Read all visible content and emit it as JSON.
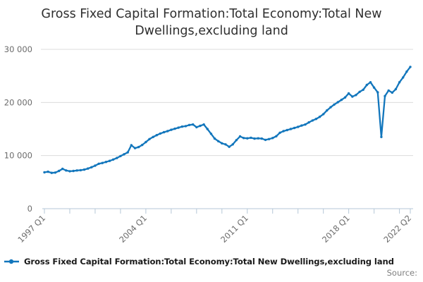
{
  "title": {
    "line1": "Gross Fixed Capital Formation:Total Economy:Total New",
    "line2": "Dwellings,excluding land"
  },
  "legend": {
    "label": "Gross Fixed Capital Formation:Total Economy:Total New Dwellings,excluding land",
    "marker_color": "#1276bc"
  },
  "footer": {
    "source_label": "Source:"
  },
  "chart_data": {
    "type": "line",
    "title": "Gross Fixed Capital Formation:Total Economy:Total New Dwellings,excluding land",
    "x_first": "1997 Q1",
    "x_last": "2022 Q2",
    "n_points": 102,
    "values": [
      6850,
      6950,
      6750,
      6800,
      7100,
      7500,
      7200,
      7050,
      7100,
      7200,
      7250,
      7350,
      7550,
      7800,
      8100,
      8450,
      8600,
      8800,
      9000,
      9250,
      9550,
      9900,
      10250,
      10600,
      11950,
      11400,
      11600,
      12000,
      12550,
      13100,
      13500,
      13850,
      14150,
      14400,
      14600,
      14850,
      15050,
      15250,
      15450,
      15550,
      15750,
      15850,
      15350,
      15600,
      15850,
      15000,
      14100,
      13200,
      12700,
      12300,
      12100,
      11650,
      12100,
      12900,
      13600,
      13300,
      13250,
      13350,
      13200,
      13250,
      13200,
      12950,
      13100,
      13300,
      13650,
      14300,
      14600,
      14800,
      15000,
      15200,
      15400,
      15650,
      15850,
      16250,
      16600,
      16900,
      17300,
      17800,
      18500,
      19100,
      19600,
      20050,
      20500,
      20950,
      21700,
      21100,
      21400,
      22000,
      22400,
      23300,
      23800,
      22800,
      21900,
      13500,
      21200,
      22250,
      21850,
      22500,
      23800,
      24700,
      25800,
      26700
    ],
    "x_tick_labels": [
      {
        "q": 0,
        "label": "1997 Q1"
      },
      {
        "q": 28,
        "label": "2004 Q1"
      },
      {
        "q": 56,
        "label": "2011 Q1"
      },
      {
        "q": 84,
        "label": "2018 Q1"
      },
      {
        "q": 101,
        "label": "2022 Q2"
      }
    ],
    "minor_tick_quarters": [
      0,
      7,
      14,
      21,
      28,
      35,
      42,
      49,
      56,
      63,
      70,
      77,
      84,
      91,
      98,
      101
    ],
    "y_ticks": [
      {
        "v": 0,
        "label": "0"
      },
      {
        "v": 10000,
        "label": "10 000"
      },
      {
        "v": 20000,
        "label": "20 000"
      },
      {
        "v": 30000,
        "label": "30 000"
      }
    ],
    "ylim": [
      0,
      30000
    ],
    "grid": "horizontal",
    "legend_position": "bottom-left",
    "line_color": "#1276bc"
  }
}
